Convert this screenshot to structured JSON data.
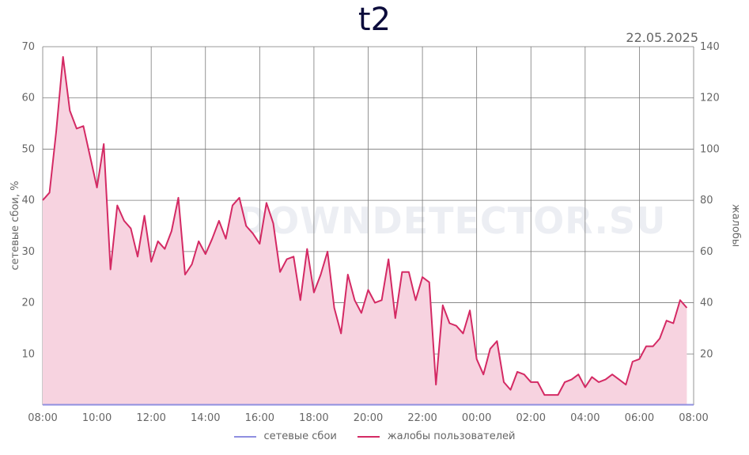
{
  "header": {
    "title": "t2",
    "date": "22.05.2025"
  },
  "watermark": "DOWNDETECTOR.SU",
  "legend": {
    "outages_label": "сетевые сбои",
    "complaints_label": "жалобы пользователей"
  },
  "chart_data": {
    "type": "area",
    "title": "t2",
    "ylabel_left": "сетевые сбои, %",
    "ylabel_right": "жалобы",
    "x_ticks": [
      "08:00",
      "10:00",
      "12:00",
      "14:00",
      "16:00",
      "18:00",
      "20:00",
      "22:00",
      "00:00",
      "02:00",
      "04:00",
      "06:00",
      "08:00"
    ],
    "x_range_hours": [
      0,
      24
    ],
    "y_left": {
      "range": [
        0,
        70
      ],
      "ticks": [
        10,
        20,
        30,
        40,
        50,
        60,
        70
      ]
    },
    "y_right": {
      "range": [
        0,
        140
      ],
      "ticks": [
        20,
        40,
        60,
        80,
        100,
        120,
        140
      ]
    },
    "grid": true,
    "legend_position": "bottom",
    "colors": {
      "outages": "#8f8fe0",
      "complaints": "#d42a64",
      "complaints_fill": "#f7d3e0",
      "grid": "#7a7a7a"
    },
    "series": [
      {
        "name": "сетевые сбои",
        "axis": "left",
        "values": []
      },
      {
        "name": "жалобы пользователей",
        "axis": "right",
        "points": [
          [
            0.0,
            80
          ],
          [
            0.25,
            83
          ],
          [
            0.5,
            107
          ],
          [
            0.75,
            136
          ],
          [
            1.0,
            115
          ],
          [
            1.25,
            108
          ],
          [
            1.5,
            109
          ],
          [
            1.75,
            97
          ],
          [
            2.0,
            85
          ],
          [
            2.25,
            102
          ],
          [
            2.5,
            53
          ],
          [
            2.75,
            78
          ],
          [
            3.0,
            72
          ],
          [
            3.25,
            69
          ],
          [
            3.5,
            58
          ],
          [
            3.75,
            74
          ],
          [
            4.0,
            56
          ],
          [
            4.25,
            64
          ],
          [
            4.5,
            61
          ],
          [
            4.75,
            68
          ],
          [
            5.0,
            81
          ],
          [
            5.25,
            51
          ],
          [
            5.5,
            55
          ],
          [
            5.75,
            64
          ],
          [
            6.0,
            59
          ],
          [
            6.25,
            65
          ],
          [
            6.5,
            72
          ],
          [
            6.75,
            65
          ],
          [
            7.0,
            78
          ],
          [
            7.25,
            81
          ],
          [
            7.5,
            70
          ],
          [
            7.75,
            67
          ],
          [
            8.0,
            63
          ],
          [
            8.25,
            79
          ],
          [
            8.5,
            71
          ],
          [
            8.75,
            52
          ],
          [
            9.0,
            57
          ],
          [
            9.25,
            58
          ],
          [
            9.5,
            41
          ],
          [
            9.75,
            61
          ],
          [
            10.0,
            44
          ],
          [
            10.25,
            51
          ],
          [
            10.5,
            60
          ],
          [
            10.75,
            38
          ],
          [
            11.0,
            28
          ],
          [
            11.25,
            51
          ],
          [
            11.5,
            41
          ],
          [
            11.75,
            36
          ],
          [
            12.0,
            45
          ],
          [
            12.25,
            40
          ],
          [
            12.5,
            41
          ],
          [
            12.75,
            57
          ],
          [
            13.0,
            34
          ],
          [
            13.25,
            52
          ],
          [
            13.5,
            52
          ],
          [
            13.75,
            41
          ],
          [
            14.0,
            50
          ],
          [
            14.25,
            48
          ],
          [
            14.5,
            8
          ],
          [
            14.75,
            39
          ],
          [
            15.0,
            32
          ],
          [
            15.25,
            31
          ],
          [
            15.5,
            28
          ],
          [
            15.75,
            37
          ],
          [
            16.0,
            18
          ],
          [
            16.25,
            12
          ],
          [
            16.5,
            22
          ],
          [
            16.75,
            25
          ],
          [
            17.0,
            9
          ],
          [
            17.25,
            6
          ],
          [
            17.5,
            13
          ],
          [
            17.75,
            12
          ],
          [
            18.0,
            9
          ],
          [
            18.25,
            9
          ],
          [
            18.5,
            4
          ],
          [
            18.75,
            4
          ],
          [
            19.0,
            4
          ],
          [
            19.25,
            9
          ],
          [
            19.5,
            10
          ],
          [
            19.75,
            12
          ],
          [
            20.0,
            7
          ],
          [
            20.25,
            11
          ],
          [
            20.5,
            9
          ],
          [
            20.75,
            10
          ],
          [
            21.0,
            12
          ],
          [
            21.25,
            10
          ],
          [
            21.5,
            8
          ],
          [
            21.75,
            17
          ],
          [
            22.0,
            18
          ],
          [
            22.25,
            23
          ],
          [
            22.5,
            23
          ],
          [
            22.75,
            26
          ],
          [
            23.0,
            33
          ],
          [
            23.25,
            32
          ],
          [
            23.5,
            41
          ],
          [
            23.75,
            38
          ]
        ]
      }
    ]
  }
}
